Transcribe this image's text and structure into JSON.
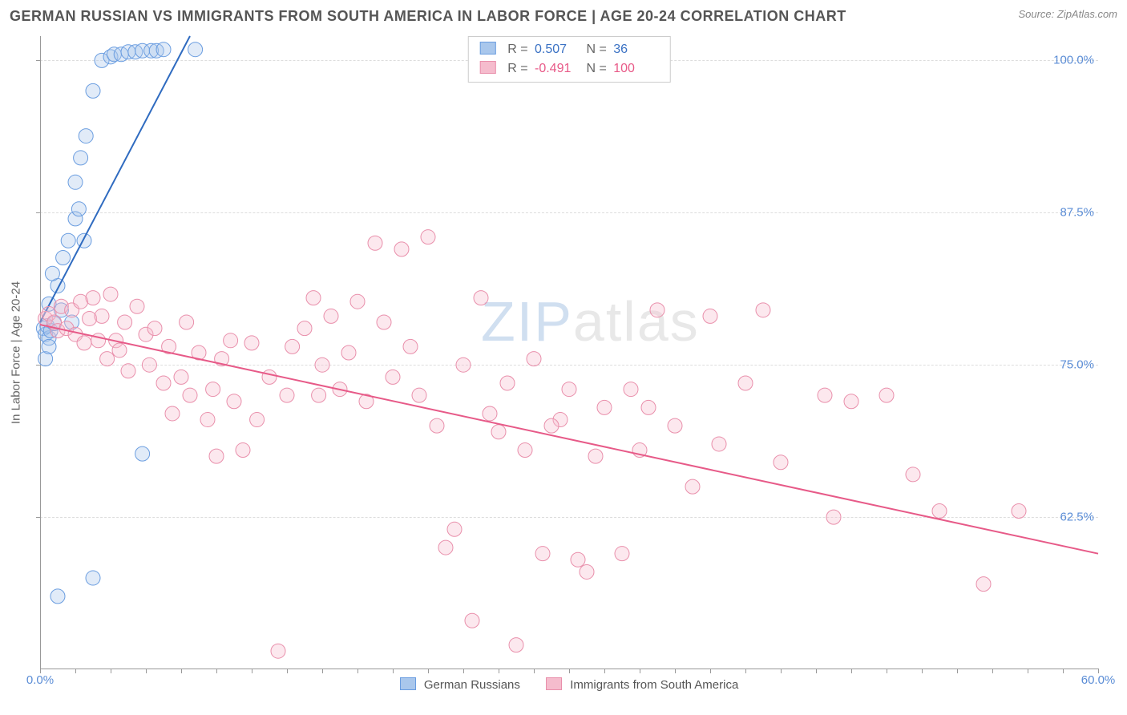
{
  "header": {
    "title": "GERMAN RUSSIAN VS IMMIGRANTS FROM SOUTH AMERICA IN LABOR FORCE | AGE 20-24 CORRELATION CHART",
    "source": "Source: ZipAtlas.com"
  },
  "watermark": {
    "zip": "ZIP",
    "atlas": "atlas"
  },
  "chart": {
    "type": "scatter",
    "y_axis_title": "In Labor Force | Age 20-24",
    "xlim": [
      0,
      60
    ],
    "ylim": [
      50,
      102
    ],
    "x_ticks_minor_step": 2,
    "x_labels": [
      {
        "v": 0,
        "label": "0.0%"
      },
      {
        "v": 60,
        "label": "60.0%"
      }
    ],
    "y_gridlines": [
      62.5,
      75,
      87.5,
      100
    ],
    "y_labels": [
      {
        "v": 62.5,
        "label": "62.5%"
      },
      {
        "v": 75,
        "label": "75.0%"
      },
      {
        "v": 87.5,
        "label": "87.5%"
      },
      {
        "v": 100,
        "label": "100.0%"
      }
    ],
    "background_color": "#ffffff",
    "grid_color": "#dddddd",
    "axis_color": "#999999",
    "tick_label_color": "#5b8dd6",
    "marker_radius": 9,
    "marker_opacity": 0.35,
    "line_width": 2,
    "series": [
      {
        "id": "german_russians",
        "label": "German Russians",
        "color_stroke": "#6a9de0",
        "color_fill": "#a9c7ec",
        "line_color": "#2f6bc0",
        "R": "0.507",
        "N": "36",
        "trend": {
          "x1": 0,
          "y1": 78.5,
          "x2": 8.5,
          "y2": 102
        },
        "points": [
          [
            0.2,
            78
          ],
          [
            0.3,
            77.5
          ],
          [
            0.5,
            77.2
          ],
          [
            0.4,
            78.2
          ],
          [
            0.6,
            77.8
          ],
          [
            0.8,
            78.4
          ],
          [
            0.5,
            80
          ],
          [
            1.0,
            81.5
          ],
          [
            1.3,
            83.8
          ],
          [
            1.6,
            85.2
          ],
          [
            2.0,
            87
          ],
          [
            2.2,
            87.8
          ],
          [
            2.5,
            85.2
          ],
          [
            2.0,
            90
          ],
          [
            2.3,
            92
          ],
          [
            2.6,
            93.8
          ],
          [
            3.0,
            97.5
          ],
          [
            3.5,
            100
          ],
          [
            4.0,
            100.3
          ],
          [
            4.2,
            100.5
          ],
          [
            4.6,
            100.5
          ],
          [
            5.0,
            100.7
          ],
          [
            5.4,
            100.7
          ],
          [
            5.8,
            100.8
          ],
          [
            6.3,
            100.8
          ],
          [
            6.6,
            100.8
          ],
          [
            7.0,
            100.9
          ],
          [
            8.8,
            100.9
          ],
          [
            3.0,
            57.5
          ],
          [
            1.0,
            56
          ],
          [
            5.8,
            67.7
          ],
          [
            0.3,
            75.5
          ],
          [
            0.5,
            76.5
          ],
          [
            0.7,
            82.5
          ],
          [
            1.2,
            79.5
          ],
          [
            1.8,
            78.5
          ]
        ]
      },
      {
        "id": "immigrants_south_america",
        "label": "Immigrants from South America",
        "color_stroke": "#e98fab",
        "color_fill": "#f5bccd",
        "line_color": "#e75a88",
        "R": "-0.491",
        "N": "100",
        "trend": {
          "x1": 0,
          "y1": 78.3,
          "x2": 60,
          "y2": 59.5
        },
        "points": [
          [
            0.3,
            78.8
          ],
          [
            0.5,
            79.2
          ],
          [
            0.8,
            78.5
          ],
          [
            1.0,
            77.8
          ],
          [
            1.2,
            79.8
          ],
          [
            1.5,
            78.0
          ],
          [
            1.8,
            79.5
          ],
          [
            2.0,
            77.5
          ],
          [
            2.3,
            80.2
          ],
          [
            2.5,
            76.8
          ],
          [
            2.8,
            78.8
          ],
          [
            3.0,
            80.5
          ],
          [
            3.3,
            77.0
          ],
          [
            3.5,
            79.0
          ],
          [
            3.8,
            75.5
          ],
          [
            4.0,
            80.8
          ],
          [
            4.3,
            77.0
          ],
          [
            4.5,
            76.2
          ],
          [
            4.8,
            78.5
          ],
          [
            5.0,
            74.5
          ],
          [
            5.5,
            79.8
          ],
          [
            6.0,
            77.5
          ],
          [
            6.2,
            75.0
          ],
          [
            6.5,
            78.0
          ],
          [
            7.0,
            73.5
          ],
          [
            7.3,
            76.5
          ],
          [
            7.5,
            71.0
          ],
          [
            8.0,
            74.0
          ],
          [
            8.3,
            78.5
          ],
          [
            8.5,
            72.5
          ],
          [
            9.0,
            76.0
          ],
          [
            9.5,
            70.5
          ],
          [
            9.8,
            73.0
          ],
          [
            10.0,
            67.5
          ],
          [
            10.3,
            75.5
          ],
          [
            10.8,
            77.0
          ],
          [
            11.0,
            72.0
          ],
          [
            11.5,
            68.0
          ],
          [
            12.0,
            76.8
          ],
          [
            12.3,
            70.5
          ],
          [
            13.0,
            74.0
          ],
          [
            13.5,
            51.5
          ],
          [
            14.0,
            72.5
          ],
          [
            14.3,
            76.5
          ],
          [
            15.0,
            78.0
          ],
          [
            15.5,
            80.5
          ],
          [
            15.8,
            72.5
          ],
          [
            16.0,
            75.0
          ],
          [
            16.5,
            79.0
          ],
          [
            17.0,
            73.0
          ],
          [
            17.5,
            76.0
          ],
          [
            18.0,
            80.2
          ],
          [
            18.5,
            72.0
          ],
          [
            19.0,
            85.0
          ],
          [
            19.5,
            78.5
          ],
          [
            20.0,
            74.0
          ],
          [
            20.5,
            84.5
          ],
          [
            21.0,
            76.5
          ],
          [
            21.5,
            72.5
          ],
          [
            22.0,
            85.5
          ],
          [
            22.5,
            70.0
          ],
          [
            23.0,
            60.0
          ],
          [
            23.5,
            61.5
          ],
          [
            24.0,
            75.0
          ],
          [
            24.5,
            54.0
          ],
          [
            25.0,
            80.5
          ],
          [
            25.5,
            71.0
          ],
          [
            26.0,
            69.5
          ],
          [
            26.5,
            73.5
          ],
          [
            27.0,
            52.0
          ],
          [
            27.5,
            68.0
          ],
          [
            28.0,
            75.5
          ],
          [
            28.5,
            59.5
          ],
          [
            29.5,
            70.5
          ],
          [
            30.0,
            73.0
          ],
          [
            30.5,
            59.0
          ],
          [
            31.0,
            58.0
          ],
          [
            31.5,
            67.5
          ],
          [
            32.0,
            71.5
          ],
          [
            33.0,
            59.5
          ],
          [
            33.5,
            73.0
          ],
          [
            34.0,
            68.0
          ],
          [
            35.0,
            79.5
          ],
          [
            36.0,
            70.0
          ],
          [
            37.0,
            65.0
          ],
          [
            38.5,
            68.5
          ],
          [
            40.0,
            73.5
          ],
          [
            41.0,
            79.5
          ],
          [
            42.0,
            67.0
          ],
          [
            44.5,
            72.5
          ],
          [
            45.0,
            62.5
          ],
          [
            46.0,
            72.0
          ],
          [
            48.0,
            72.5
          ],
          [
            49.5,
            66.0
          ],
          [
            51.0,
            63.0
          ],
          [
            53.5,
            57.0
          ],
          [
            55.5,
            63.0
          ],
          [
            38.0,
            79.0
          ],
          [
            34.5,
            71.5
          ],
          [
            29.0,
            70.0
          ]
        ]
      }
    ]
  },
  "legend_bottom": [
    {
      "label": "German Russians",
      "fill": "#a9c7ec",
      "stroke": "#6a9de0"
    },
    {
      "label": "Immigrants from South America",
      "fill": "#f5bccd",
      "stroke": "#e98fab"
    }
  ]
}
